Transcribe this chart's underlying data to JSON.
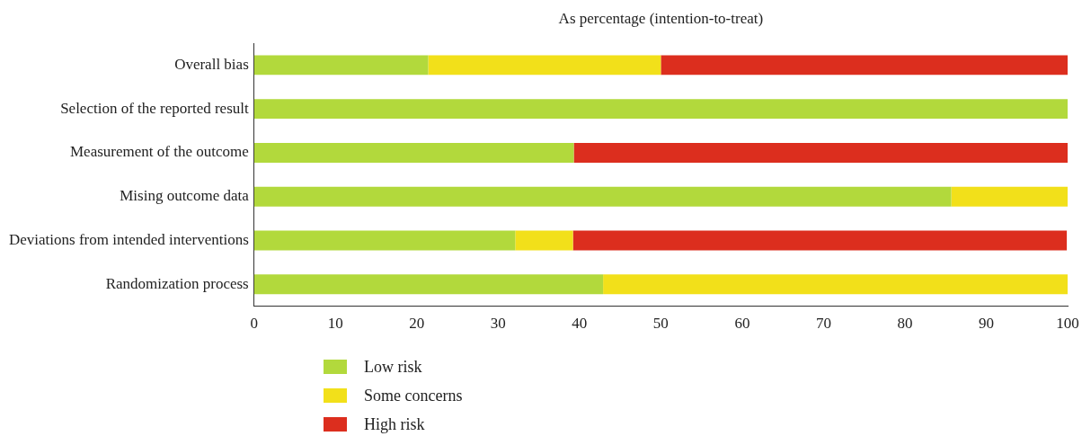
{
  "chart_data": {
    "type": "bar",
    "orientation": "horizontal",
    "stacked": true,
    "title": "As percentage (intention-to-treat)",
    "categories": [
      "Overall bias",
      "Selection of the reported result",
      "Measurement of the outcome",
      "Mising outcome data",
      "Deviations from intended interventions",
      "Randomization process"
    ],
    "series": [
      {
        "name": "Low risk",
        "color": "#b2d93c",
        "values": [
          21.4,
          100,
          39.3,
          85.7,
          32.1,
          42.9
        ]
      },
      {
        "name": "Some concerns",
        "color": "#f2e01a",
        "values": [
          28.6,
          0,
          0,
          14.3,
          7.1,
          57.1
        ]
      },
      {
        "name": "High risk",
        "color": "#dc2e1e",
        "values": [
          50,
          0,
          60.7,
          0,
          60.7,
          0
        ]
      }
    ],
    "xlim": [
      0,
      100
    ],
    "xticks": [
      0,
      10,
      20,
      30,
      40,
      50,
      60,
      70,
      80,
      90,
      100
    ],
    "grid": false,
    "legend": "bottom left"
  }
}
